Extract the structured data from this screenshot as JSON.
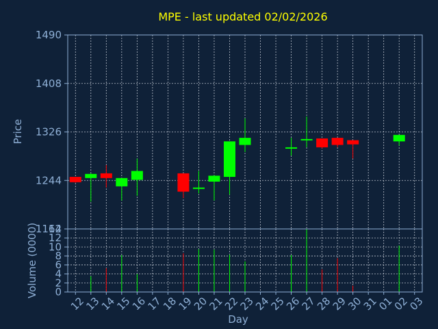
{
  "chart_data": {
    "type": "candlestick",
    "title": "MPE - last updated 02/02/2026",
    "xlabel": "Day",
    "price_panel": {
      "ylabel": "Price",
      "ylim": [
        1162,
        1490
      ],
      "yticks": [
        "1490",
        "1408",
        "1326",
        "1244",
        "1162"
      ]
    },
    "volume_panel": {
      "ylabel": "Volume (0000)",
      "ylim": [
        0,
        14
      ],
      "yticks": [
        "14",
        "12",
        "10",
        "8",
        "6",
        "4",
        "2",
        "0"
      ]
    },
    "x_ticks": [
      "12",
      "13",
      "14",
      "15",
      "16",
      "17",
      "18",
      "19",
      "20",
      "21",
      "22",
      "23",
      "24",
      "25",
      "26",
      "27",
      "28",
      "29",
      "30",
      "31",
      "01",
      "02",
      "03"
    ],
    "colors": {
      "up": "#00ff00",
      "down": "#ff0000",
      "title": "#ffff00",
      "axis": "#8fb0d6",
      "background": "#0f2138"
    },
    "candles": [
      {
        "day": "12",
        "open": 1250,
        "high": 1250,
        "low": 1240,
        "close": 1241,
        "volume": 0
      },
      {
        "day": "13",
        "open": 1248,
        "high": 1256,
        "low": 1208,
        "close": 1255,
        "volume": 3.5
      },
      {
        "day": "14",
        "open": 1256,
        "high": 1270,
        "low": 1232,
        "close": 1248,
        "volume": 5.3
      },
      {
        "day": "15",
        "open": 1234,
        "high": 1248,
        "low": 1210,
        "close": 1248,
        "volume": 8.2
      },
      {
        "day": "16",
        "open": 1245,
        "high": 1281,
        "low": 1218,
        "close": 1260,
        "volume": 4.0
      },
      {
        "day": "19",
        "open": 1256,
        "high": 1256,
        "low": 1214,
        "close": 1225,
        "volume": 8.6
      },
      {
        "day": "20",
        "open": 1230,
        "high": 1260,
        "low": 1222,
        "close": 1232,
        "volume": 9.5
      },
      {
        "day": "21",
        "open": 1242,
        "high": 1253,
        "low": 1210,
        "close": 1252,
        "volume": 9.4
      },
      {
        "day": "22",
        "open": 1250,
        "high": 1310,
        "low": 1220,
        "close": 1310,
        "volume": 8.3
      },
      {
        "day": "23",
        "open": 1304,
        "high": 1349,
        "low": 1292,
        "close": 1316,
        "volume": 6.8
      },
      {
        "day": "26",
        "open": 1298,
        "high": 1316,
        "low": 1286,
        "close": 1300,
        "volume": 8.2
      },
      {
        "day": "27",
        "open": 1312,
        "high": 1352,
        "low": 1300,
        "close": 1314,
        "volume": 14.0
      },
      {
        "day": "28",
        "open": 1315,
        "high": 1315,
        "low": 1298,
        "close": 1300,
        "volume": 5.0
      },
      {
        "day": "29",
        "open": 1316,
        "high": 1316,
        "low": 1300,
        "close": 1304,
        "volume": 7.5
      },
      {
        "day": "30",
        "open": 1312,
        "high": 1312,
        "low": 1281,
        "close": 1305,
        "volume": 1.4
      },
      {
        "day": "02",
        "open": 1310,
        "high": 1321,
        "low": 1303,
        "close": 1321,
        "volume": 10.3
      }
    ]
  }
}
